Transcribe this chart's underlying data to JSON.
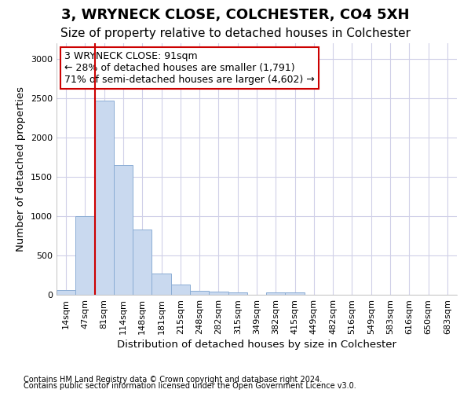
{
  "title": "3, WRYNECK CLOSE, COLCHESTER, CO4 5XH",
  "subtitle": "Size of property relative to detached houses in Colchester",
  "xlabel": "Distribution of detached houses by size in Colchester",
  "ylabel": "Number of detached properties",
  "footnote1": "Contains HM Land Registry data © Crown copyright and database right 2024.",
  "footnote2": "Contains public sector information licensed under the Open Government Licence v3.0.",
  "bin_labels": [
    "14sqm",
    "47sqm",
    "81sqm",
    "114sqm",
    "148sqm",
    "181sqm",
    "215sqm",
    "248sqm",
    "282sqm",
    "315sqm",
    "349sqm",
    "382sqm",
    "415sqm",
    "449sqm",
    "482sqm",
    "516sqm",
    "549sqm",
    "583sqm",
    "616sqm",
    "650sqm",
    "683sqm"
  ],
  "bar_values": [
    60,
    1000,
    2470,
    1650,
    830,
    275,
    130,
    55,
    45,
    35,
    0,
    35,
    30,
    0,
    0,
    0,
    0,
    0,
    0,
    0,
    0
  ],
  "bar_color": "#c9d9ef",
  "bar_edge_color": "#8badd4",
  "grid_color": "#d0d0e8",
  "property_line_color": "#cc0000",
  "annotation_text": "3 WRYNECK CLOSE: 91sqm\n← 28% of detached houses are smaller (1,791)\n71% of semi-detached houses are larger (4,602) →",
  "annotation_box_color": "#cc0000",
  "ylim": [
    0,
    3200
  ],
  "yticks": [
    0,
    500,
    1000,
    1500,
    2000,
    2500,
    3000
  ],
  "title_fontsize": 13,
  "subtitle_fontsize": 11,
  "axis_label_fontsize": 9.5,
  "tick_fontsize": 8,
  "annotation_fontsize": 9,
  "footnote_fontsize": 7
}
